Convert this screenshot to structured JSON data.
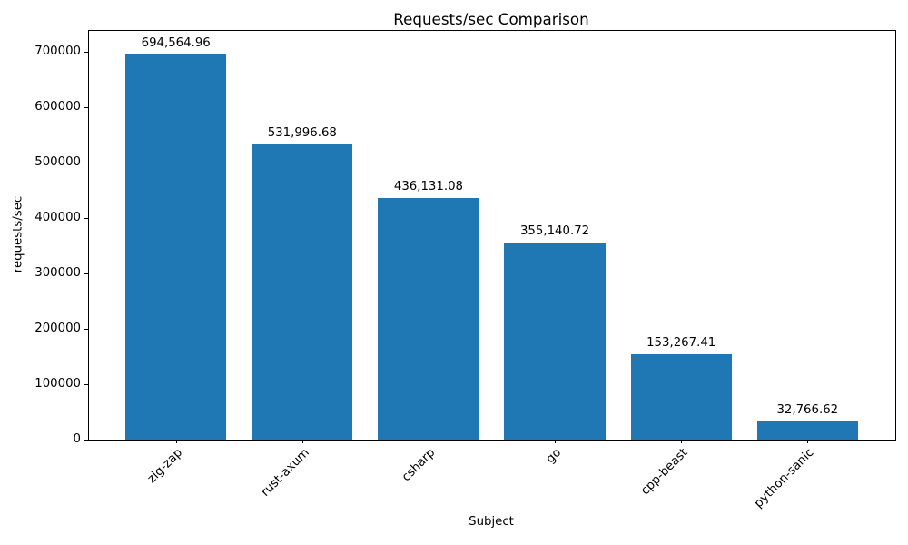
{
  "chart_data": {
    "type": "bar",
    "title": "Requests/sec Comparison",
    "xlabel": "Subject",
    "ylabel": "requests/sec",
    "categories": [
      "zig-zap",
      "rust-axum",
      "csharp",
      "go",
      "cpp-beast",
      "python-sanic"
    ],
    "values": [
      694564.96,
      531996.68,
      436131.08,
      355140.72,
      153267.41,
      32766.62
    ],
    "value_labels": [
      "694,564.96",
      "531,996.68",
      "436,131.08",
      "355,140.72",
      "153,267.41",
      "32,766.62"
    ],
    "yticks": [
      0,
      100000,
      200000,
      300000,
      400000,
      500000,
      600000,
      700000
    ],
    "ytick_labels": [
      "0",
      "100000",
      "200000",
      "300000",
      "400000",
      "500000",
      "600000",
      "700000"
    ],
    "ylim": [
      0,
      739000
    ],
    "xtick_rotation": 45,
    "grid": false,
    "legend": null,
    "bar_color": "#1f77b4",
    "text_color": "#000000",
    "background_color": "#ffffff"
  }
}
